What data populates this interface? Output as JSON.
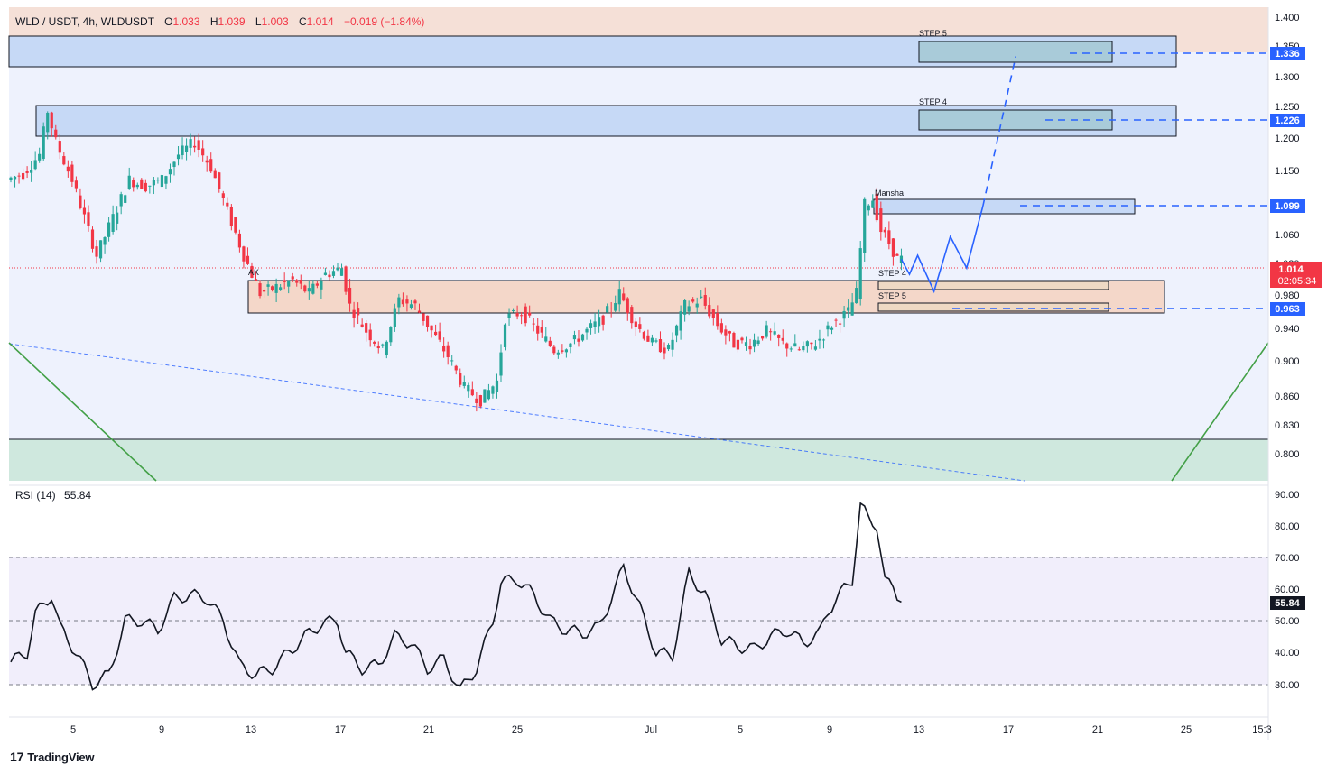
{
  "header": {
    "symbol": "WLD / USDT, 4h, WLDUSDT",
    "o_label": "O",
    "o_value": "1.033",
    "h_label": "H",
    "h_value": "1.039",
    "l_label": "L",
    "l_value": "1.003",
    "c_label": "C",
    "c_value": "1.014",
    "change": "−0.019 (−1.84%)"
  },
  "rsi": {
    "label": "RSI (14)",
    "value": "55.84"
  },
  "branding": {
    "name": "TradingView"
  },
  "colors": {
    "up": "#26a69a",
    "down": "#f23645",
    "projection": "#2962ff",
    "trend_green": "#4caf50",
    "resistance_zone": "#f4d6c8",
    "support_zone": "#bfe3d8",
    "blue_zone": "#c9dbf7",
    "rsi_line": "#131722"
  },
  "annotations": {
    "step5_top": "STEP 5",
    "step4_top": "STEP 4",
    "mansha": "Mansha",
    "ak": "AK",
    "step4_low": "STEP 4",
    "step5_low": "STEP 5"
  },
  "price_tags": {
    "t1336": "1.336",
    "t1226": "1.226",
    "t1099": "1.099",
    "current": "1.014",
    "countdown": "02:05:34",
    "t0963": "0.963",
    "rsi": "55.84"
  },
  "chart_data": {
    "type": "candlestick",
    "timeframe": "4h",
    "price_axis_ticks": [
      "1.400",
      "1.350",
      "1.300",
      "1.250",
      "1.200",
      "1.150",
      "1.100",
      "1.060",
      "1.020",
      "0.980",
      "0.940",
      "0.900",
      "0.860",
      "0.830",
      "0.800"
    ],
    "rsi_axis_ticks": [
      "90.00",
      "80.00",
      "70.00",
      "60.00",
      "50.00",
      "40.00",
      "30.00"
    ],
    "x_ticks": [
      "5",
      "9",
      "13",
      "17",
      "21",
      "25",
      "Jul",
      "5",
      "9",
      "13",
      "17",
      "21",
      "25",
      "15:3"
    ],
    "price_path": [
      [
        0,
        1.14
      ],
      [
        2,
        1.15
      ],
      [
        4,
        1.18
      ],
      [
        5,
        1.25
      ],
      [
        6,
        1.2
      ],
      [
        8,
        1.14
      ],
      [
        10,
        1.06
      ],
      [
        11,
        1.02
      ],
      [
        13,
        1.08
      ],
      [
        15,
        1.14
      ],
      [
        17,
        1.13
      ],
      [
        19,
        1.14
      ],
      [
        21,
        1.18
      ],
      [
        23,
        1.2
      ],
      [
        25,
        1.16
      ],
      [
        27,
        1.09
      ],
      [
        29,
        1.02
      ],
      [
        31,
        0.96
      ],
      [
        33,
        0.97
      ],
      [
        35,
        0.98
      ],
      [
        37,
        0.96
      ],
      [
        39,
        0.99
      ],
      [
        41,
        1.0
      ],
      [
        42,
        0.94
      ],
      [
        44,
        0.9
      ],
      [
        46,
        0.87
      ],
      [
        48,
        0.95
      ],
      [
        50,
        0.94
      ],
      [
        52,
        0.9
      ],
      [
        54,
        0.86
      ],
      [
        56,
        0.81
      ],
      [
        58,
        0.79
      ],
      [
        60,
        0.82
      ],
      [
        61,
        0.92
      ],
      [
        63,
        0.93
      ],
      [
        65,
        0.9
      ],
      [
        67,
        0.87
      ],
      [
        69,
        0.88
      ],
      [
        71,
        0.9
      ],
      [
        73,
        0.92
      ],
      [
        75,
        0.96
      ],
      [
        77,
        0.91
      ],
      [
        79,
        0.88
      ],
      [
        81,
        0.87
      ],
      [
        83,
        0.94
      ],
      [
        85,
        0.95
      ],
      [
        87,
        0.91
      ],
      [
        89,
        0.88
      ],
      [
        91,
        0.88
      ],
      [
        93,
        0.9
      ],
      [
        95,
        0.88
      ],
      [
        97,
        0.87
      ],
      [
        99,
        0.88
      ],
      [
        101,
        0.91
      ],
      [
        103,
        0.93
      ],
      [
        104,
        0.96
      ],
      [
        105,
        1.1
      ],
      [
        106,
        1.11
      ],
      [
        107,
        1.06
      ],
      [
        108,
        1.04
      ],
      [
        109,
        1.014
      ]
    ],
    "rsi_path": [
      [
        0,
        37
      ],
      [
        2,
        40
      ],
      [
        3,
        52
      ],
      [
        5,
        58
      ],
      [
        6,
        48
      ],
      [
        8,
        40
      ],
      [
        10,
        30
      ],
      [
        12,
        33
      ],
      [
        14,
        50
      ],
      [
        16,
        50
      ],
      [
        18,
        47
      ],
      [
        20,
        57
      ],
      [
        22,
        58
      ],
      [
        24,
        57
      ],
      [
        26,
        50
      ],
      [
        28,
        36
      ],
      [
        30,
        33
      ],
      [
        32,
        35
      ],
      [
        34,
        40
      ],
      [
        36,
        45
      ],
      [
        38,
        49
      ],
      [
        40,
        50
      ],
      [
        41,
        40
      ],
      [
        43,
        35
      ],
      [
        45,
        36
      ],
      [
        47,
        45
      ],
      [
        49,
        43
      ],
      [
        51,
        35
      ],
      [
        53,
        38
      ],
      [
        55,
        28
      ],
      [
        57,
        35
      ],
      [
        59,
        50
      ],
      [
        60,
        62
      ],
      [
        62,
        63
      ],
      [
        64,
        58
      ],
      [
        66,
        50
      ],
      [
        68,
        47
      ],
      [
        70,
        46
      ],
      [
        72,
        48
      ],
      [
        74,
        60
      ],
      [
        75,
        67
      ],
      [
        77,
        54
      ],
      [
        79,
        40
      ],
      [
        81,
        39
      ],
      [
        83,
        65
      ],
      [
        85,
        58
      ],
      [
        87,
        44
      ],
      [
        89,
        42
      ],
      [
        91,
        41
      ],
      [
        93,
        45
      ],
      [
        95,
        47
      ],
      [
        97,
        43
      ],
      [
        99,
        46
      ],
      [
        100,
        53
      ],
      [
        102,
        60
      ],
      [
        103,
        63
      ],
      [
        104,
        86
      ],
      [
        105,
        82
      ],
      [
        106,
        80
      ],
      [
        107,
        62
      ],
      [
        108,
        61
      ],
      [
        109,
        55.84
      ]
    ],
    "levels": {
      "step5_zone": [
        1.32,
        1.372
      ],
      "step4_zone": [
        1.2,
        1.255
      ],
      "mansha_zone": [
        1.09,
        1.11
      ],
      "ak_zone": [
        0.96,
        1.007
      ],
      "support_zone": [
        0.76,
        0.815
      ],
      "step4_low": [
        0.99,
        1.0
      ],
      "step5_low": [
        0.96,
        0.97
      ]
    },
    "projection": [
      [
        109,
        1.014
      ],
      [
        110,
        0.99
      ],
      [
        111,
        1.02
      ],
      [
        113,
        0.963
      ],
      [
        115,
        1.05
      ],
      [
        117,
        1.0
      ],
      [
        119,
        1.099
      ],
      [
        123,
        1.336
      ]
    ],
    "rsi_bands": [
      30,
      50,
      70
    ],
    "legend": "none",
    "grid": false
  }
}
